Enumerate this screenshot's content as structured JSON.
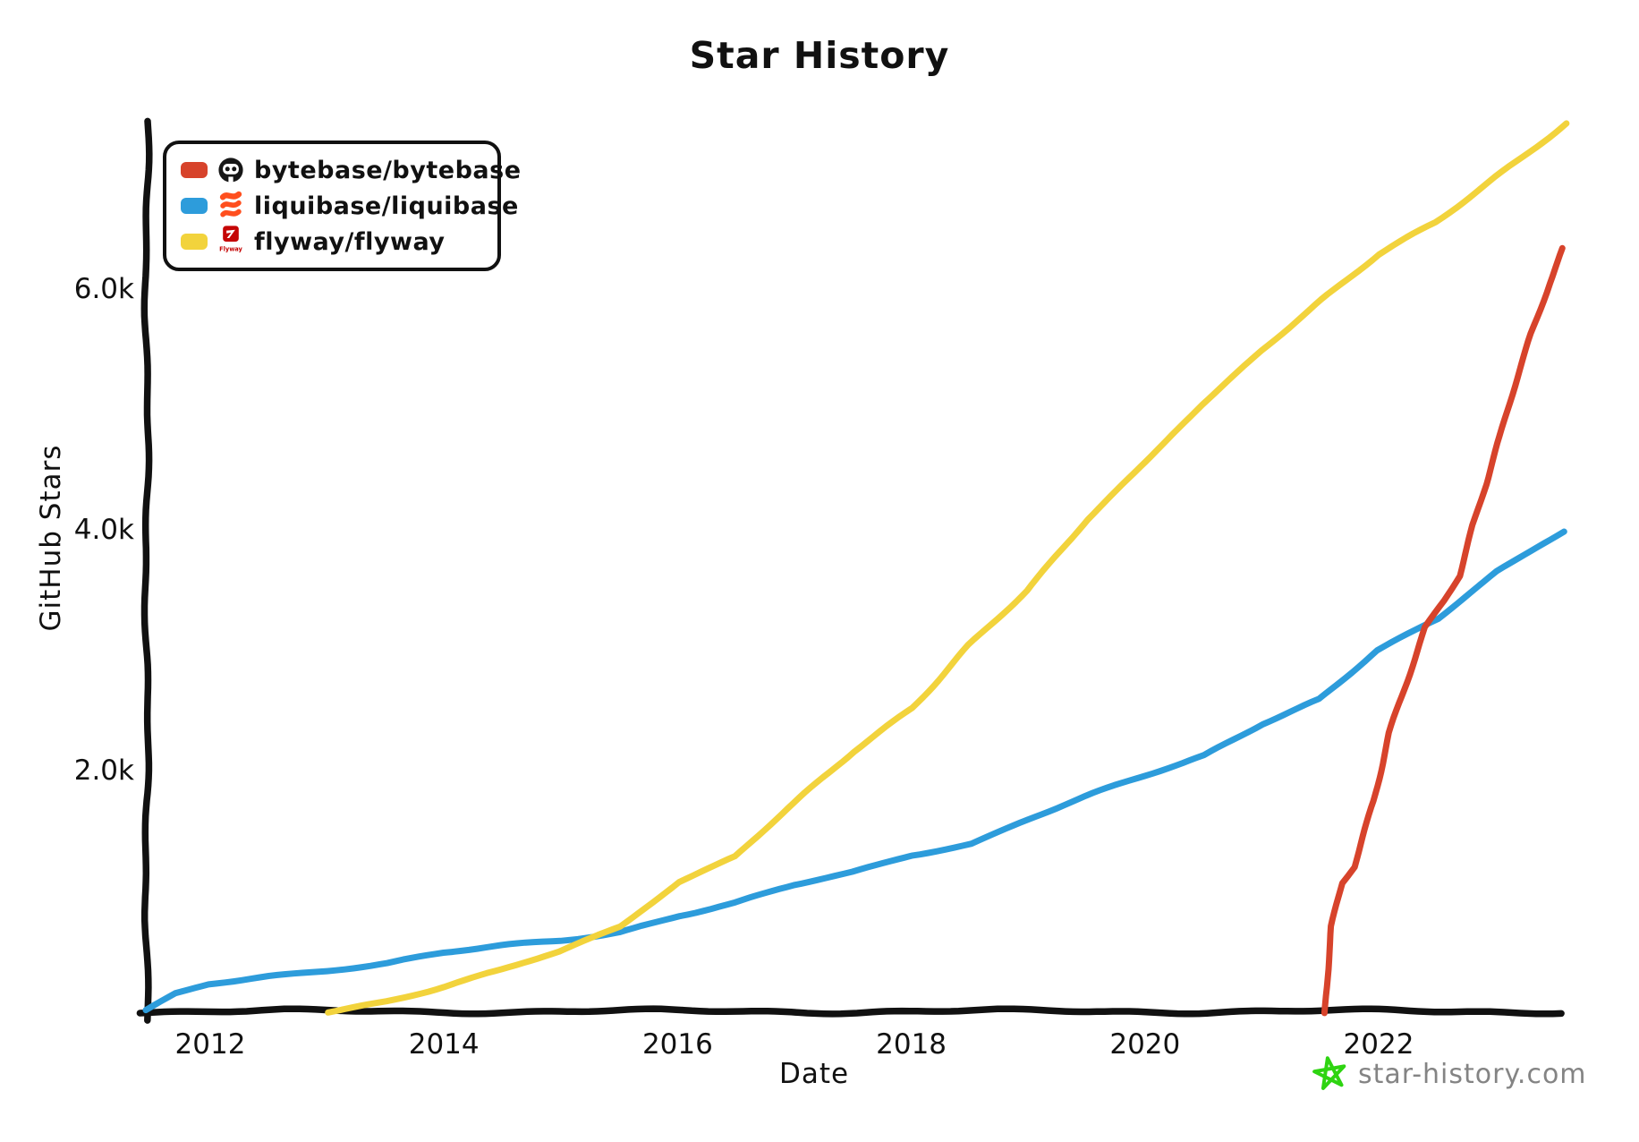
{
  "title": "Star History",
  "axes": {
    "x": {
      "label": "Date"
    },
    "y": {
      "label": "GitHub Stars"
    }
  },
  "legend": {
    "items": [
      {
        "label": "bytebase/bytebase",
        "color": "#D7432B",
        "logo": "bytebase-logo"
      },
      {
        "label": "liquibase/liquibase",
        "color": "#2D9CDB",
        "logo": "liquibase-logo"
      },
      {
        "label": "flyway/flyway",
        "color": "#F2D33C",
        "logo": "flyway-logo"
      }
    ]
  },
  "watermark": {
    "text": "star-history.com",
    "icon": "star-icon",
    "icon_color": "#2ED411",
    "text_color": "#848484"
  },
  "chart_data": {
    "type": "line",
    "title": "Star History",
    "xlabel": "Date",
    "ylabel": "GitHub Stars",
    "x_range": [
      2011.3,
      2023.9
    ],
    "ylim": [
      0,
      7400
    ],
    "grid": false,
    "legend_position": "top-left",
    "x_ticks": [
      {
        "value": 2012,
        "label": "2012"
      },
      {
        "value": 2014,
        "label": "2014"
      },
      {
        "value": 2016,
        "label": "2016"
      },
      {
        "value": 2018,
        "label": "2018"
      },
      {
        "value": 2020,
        "label": "2020"
      },
      {
        "value": 2022,
        "label": "2022"
      }
    ],
    "y_ticks": [
      {
        "value": 2000,
        "label": "2.0k"
      },
      {
        "value": 4000,
        "label": "4.0k"
      },
      {
        "value": 6000,
        "label": "6.0k"
      }
    ],
    "series": [
      {
        "name": "liquibase/liquibase",
        "color": "#2D9CDB",
        "points": [
          [
            2011.45,
            0
          ],
          [
            2011.7,
            140
          ],
          [
            2012.0,
            230
          ],
          [
            2012.5,
            300
          ],
          [
            2013.0,
            345
          ],
          [
            2013.5,
            395
          ],
          [
            2014.0,
            480
          ],
          [
            2014.5,
            540
          ],
          [
            2015.0,
            590
          ],
          [
            2015.5,
            665
          ],
          [
            2016.0,
            800
          ],
          [
            2016.5,
            900
          ],
          [
            2017.0,
            1040
          ],
          [
            2017.5,
            1150
          ],
          [
            2018.0,
            1300
          ],
          [
            2018.5,
            1400
          ],
          [
            2019.0,
            1600
          ],
          [
            2019.5,
            1780
          ],
          [
            2020.0,
            1950
          ],
          [
            2020.5,
            2120
          ],
          [
            2021.0,
            2400
          ],
          [
            2021.5,
            2600
          ],
          [
            2022.0,
            3000
          ],
          [
            2022.5,
            3250
          ],
          [
            2023.0,
            3650
          ],
          [
            2023.6,
            4000
          ]
        ]
      },
      {
        "name": "flyway/flyway",
        "color": "#F2D33C",
        "points": [
          [
            2013.0,
            0
          ],
          [
            2013.5,
            90
          ],
          [
            2014.0,
            210
          ],
          [
            2014.5,
            340
          ],
          [
            2015.0,
            490
          ],
          [
            2015.5,
            700
          ],
          [
            2016.0,
            1080
          ],
          [
            2016.5,
            1300
          ],
          [
            2017.0,
            1720
          ],
          [
            2017.5,
            2150
          ],
          [
            2018.0,
            2520
          ],
          [
            2018.5,
            3050
          ],
          [
            2019.0,
            3500
          ],
          [
            2019.5,
            4080
          ],
          [
            2020.0,
            4560
          ],
          [
            2020.5,
            5050
          ],
          [
            2021.0,
            5500
          ],
          [
            2021.5,
            5900
          ],
          [
            2022.0,
            6280
          ],
          [
            2022.5,
            6560
          ],
          [
            2023.0,
            6940
          ],
          [
            2023.6,
            7380
          ]
        ]
      },
      {
        "name": "bytebase/bytebase",
        "color": "#D7432B",
        "points": [
          [
            2021.55,
            0
          ],
          [
            2021.6,
            700
          ],
          [
            2021.68,
            1060
          ],
          [
            2021.78,
            1190
          ],
          [
            2021.95,
            1750
          ],
          [
            2022.1,
            2320
          ],
          [
            2022.25,
            2750
          ],
          [
            2022.4,
            3190
          ],
          [
            2022.55,
            3400
          ],
          [
            2022.68,
            3610
          ],
          [
            2022.8,
            4030
          ],
          [
            2022.92,
            4370
          ],
          [
            2023.05,
            4790
          ],
          [
            2023.17,
            5200
          ],
          [
            2023.3,
            5640
          ],
          [
            2023.45,
            6040
          ],
          [
            2023.57,
            6330
          ]
        ]
      }
    ]
  }
}
